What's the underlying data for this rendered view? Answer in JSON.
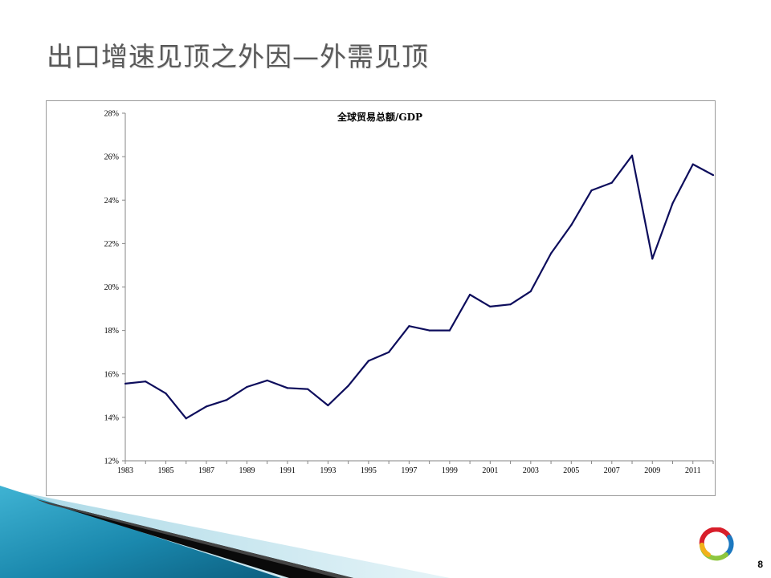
{
  "slide": {
    "title": "出口增速见顶之外因—外需见顶",
    "page_number": "8"
  },
  "chart_data": {
    "type": "line",
    "title": "全球贸易总额/GDP",
    "xlabel": "",
    "ylabel": "",
    "x": [
      1983,
      1984,
      1985,
      1986,
      1987,
      1988,
      1989,
      1990,
      1991,
      1992,
      1993,
      1994,
      1995,
      1996,
      1997,
      1998,
      1999,
      2000,
      2001,
      2002,
      2003,
      2004,
      2005,
      2006,
      2007,
      2008,
      2009,
      2010,
      2011,
      2012
    ],
    "series": [
      {
        "name": "",
        "color": "#0d0d5c",
        "values": [
          0.1555,
          0.1565,
          0.151,
          0.1395,
          0.145,
          0.148,
          0.154,
          0.157,
          0.1535,
          0.153,
          0.1455,
          0.1545,
          0.166,
          0.17,
          0.182,
          0.18,
          0.18,
          0.1965,
          0.191,
          0.192,
          0.198,
          0.2155,
          0.2285,
          0.2445,
          0.248,
          0.2605,
          0.213,
          0.2385,
          0.2565,
          0.2515
        ]
      }
    ],
    "ylim": [
      0.12,
      0.28
    ],
    "y_ticks": [
      "12%",
      "14%",
      "16%",
      "18%",
      "20%",
      "22%",
      "24%",
      "26%",
      "28%"
    ],
    "x_ticks": [
      "1983",
      "1985",
      "1987",
      "1989",
      "1991",
      "1993",
      "1995",
      "1997",
      "1999",
      "2001",
      "2003",
      "2005",
      "2007",
      "2009",
      "2011"
    ],
    "grid": false,
    "legend": "none"
  },
  "colors": {
    "title": "#595959",
    "line": "#0d0d5c",
    "teal_band": "#1f8fb0"
  }
}
